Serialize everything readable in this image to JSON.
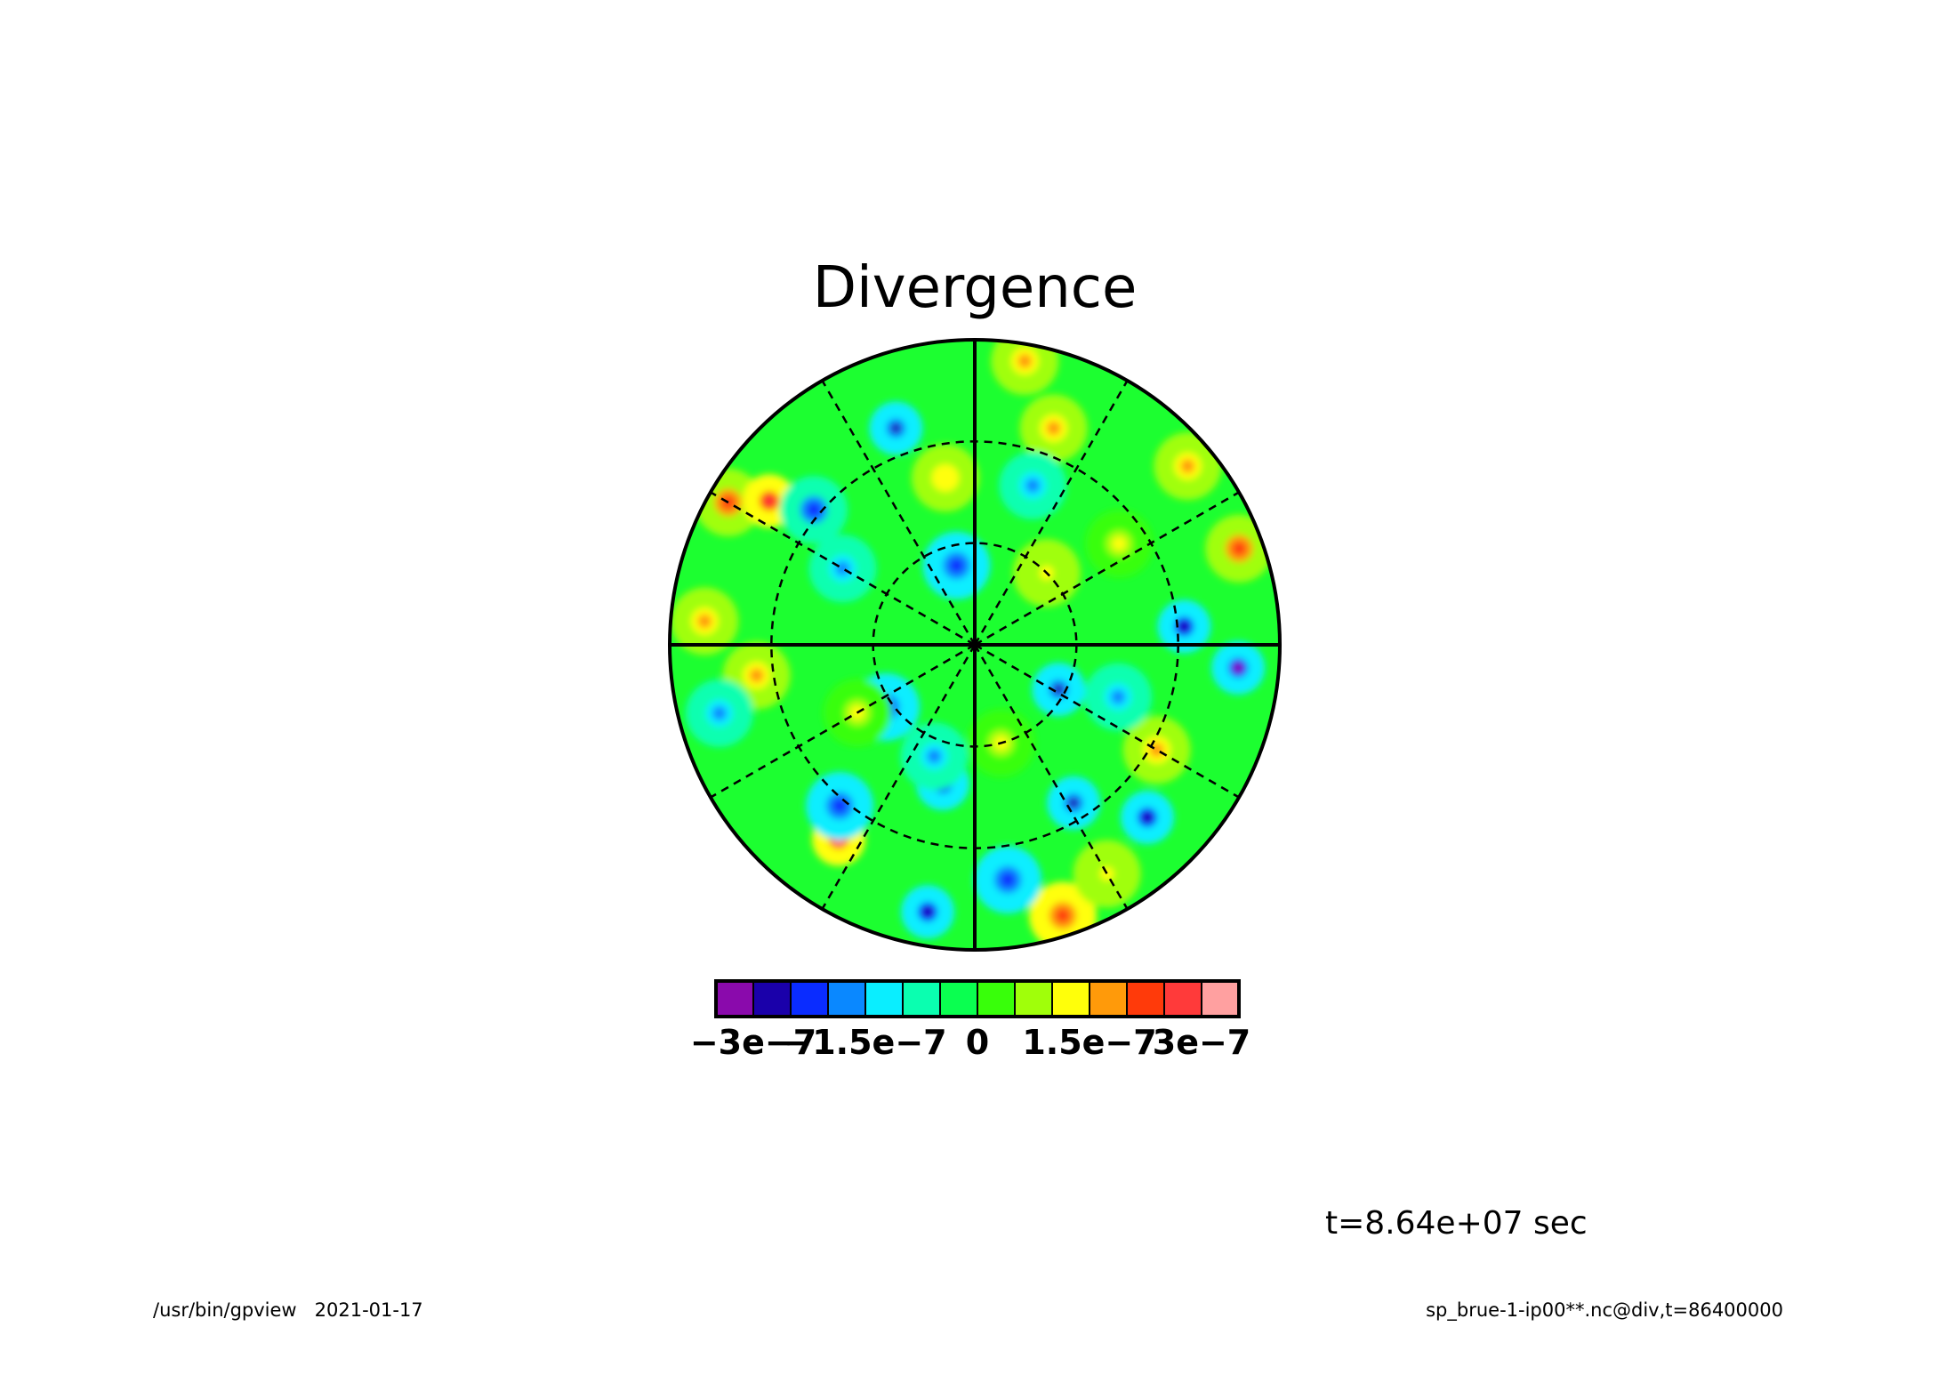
{
  "chart_data": {
    "type": "heatmap",
    "projection": "polar-stereographic",
    "title": "Divergence",
    "variable": "div",
    "colorbar": {
      "colors": [
        "#8a0aac",
        "#1a00aa",
        "#0a2cff",
        "#0a88ff",
        "#0aeeff",
        "#0affb0",
        "#0aff50",
        "#38ff0a",
        "#a0ff0a",
        "#ffff0a",
        "#ff9a0a",
        "#ff3a0a",
        "#ff3a3a",
        "#ffa0a0"
      ],
      "bounds": [
        -3.5e-07,
        -3e-07,
        -2.5e-07,
        -2e-07,
        -1.5e-07,
        -1e-07,
        -5e-08,
        0,
        5e-08,
        1e-07,
        1.5e-07,
        2e-07,
        2.5e-07,
        3e-07,
        3.5e-07
      ],
      "tick_values": [
        -3e-07,
        -1.5e-07,
        0,
        1.5e-07,
        3e-07
      ],
      "tick_labels": [
        "−3e−7",
        "−1.5e−7",
        "0",
        "1.5e−7",
        "3e−7"
      ]
    },
    "grid": {
      "latitude_circles_deg": [
        60,
        30
      ],
      "meridian_spacing_deg": 30,
      "bold_meridian_spacing_deg": 90
    },
    "anomalies": [
      {
        "lon": 95,
        "lat": 12,
        "value": -3.1e-07
      },
      {
        "lon": 85,
        "lat": 28,
        "value": -2.8e-07
      },
      {
        "lon": 118,
        "lat": 62,
        "value": -2.6e-07
      },
      {
        "lon": 135,
        "lat": 18,
        "value": -2.7e-07
      },
      {
        "lon": 148,
        "lat": 35,
        "value": -2.6e-07
      },
      {
        "lon": 162,
        "lat": 6,
        "value": 2.4e-07
      },
      {
        "lon": 172,
        "lat": 20,
        "value": -2.5e-07
      },
      {
        "lon": 190,
        "lat": 10,
        "value": -2.9e-07
      },
      {
        "lon": 193,
        "lat": 48,
        "value": -2.7e-07
      },
      {
        "lon": 215,
        "lat": 20,
        "value": 3e-07
      },
      {
        "lon": 220,
        "lat": 28,
        "value": -2.5e-07
      },
      {
        "lon": 235,
        "lat": 58,
        "value": -2.3e-07
      },
      {
        "lon": 300,
        "lat": 6,
        "value": 2.2e-07
      },
      {
        "lon": 305,
        "lat": 16,
        "value": 2.8e-07
      },
      {
        "lon": 310,
        "lat": 28,
        "value": -2.2e-07
      },
      {
        "lon": 340,
        "lat": 22,
        "value": -2.6e-07
      },
      {
        "lon": 347,
        "lat": 66,
        "value": -2.4e-07
      },
      {
        "lon": 20,
        "lat": 22,
        "value": 1.6e-07
      },
      {
        "lon": 50,
        "lat": 8,
        "value": 1.8e-07
      },
      {
        "lon": 55,
        "lat": 38,
        "value": 1e-07
      },
      {
        "lon": 70,
        "lat": 7,
        "value": 2.2e-07
      },
      {
        "lon": 120,
        "lat": 28,
        "value": 1.7e-07
      },
      {
        "lon": 150,
        "lat": 12,
        "value": 1.2e-07
      },
      {
        "lon": 240,
        "lat": 50,
        "value": 1e-07
      },
      {
        "lon": 262,
        "lat": 25,
        "value": 1.5e-07
      },
      {
        "lon": 275,
        "lat": 10,
        "value": 1.6e-07
      },
      {
        "lon": 350,
        "lat": 40,
        "value": 1.4e-07
      },
      {
        "lon": 10,
        "lat": 5,
        "value": 1.7e-07
      },
      {
        "lon": 200,
        "lat": 55,
        "value": -1.6e-07
      },
      {
        "lon": 255,
        "lat": 12,
        "value": -1.8e-07
      },
      {
        "lon": 20,
        "lat": 40,
        "value": -1.6e-07
      },
      {
        "lon": 110,
        "lat": 45,
        "value": -1.7e-07
      },
      {
        "lon": 300,
        "lat": 45,
        "value": -1.6e-07
      },
      {
        "lon": 45,
        "lat": 60,
        "value": 1.3e-07
      },
      {
        "lon": 165,
        "lat": 60,
        "value": 1.1e-07
      }
    ]
  },
  "time_label": "t=8.64e+07 sec",
  "footer": {
    "left": "/usr/bin/gpview   2021-01-17",
    "right": "sp_brue-1-ip00**.nc@div,t=86400000"
  }
}
